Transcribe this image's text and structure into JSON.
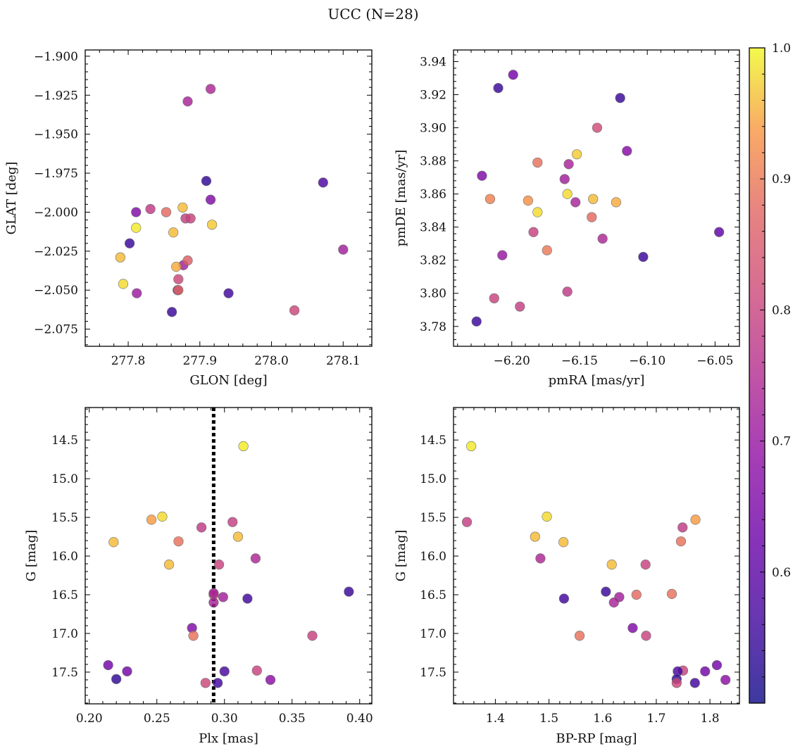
{
  "figure": {
    "title": "UCC (N=28)"
  },
  "colorbar": {
    "min": 0.5,
    "max": 1.0,
    "ticks": [
      0.6,
      0.7,
      0.8,
      0.9,
      1.0
    ],
    "tick_labels": [
      "0.6",
      "0.7",
      "0.8",
      "0.9",
      "1.0"
    ],
    "colormap": "plasma"
  },
  "chart_data": [
    {
      "type": "scatter",
      "xlabel": "GLON [deg]",
      "ylabel": "GLAT [deg]",
      "xlim": [
        277.74,
        278.14
      ],
      "ylim": [
        -2.086,
        -1.896
      ],
      "xticks": [
        277.8,
        277.9,
        278.0,
        278.1
      ],
      "xtick_labels": [
        "277.8",
        "277.9",
        "278.0",
        "278.1"
      ],
      "yticks": [
        -2.075,
        -2.05,
        -2.025,
        -2.0,
        -1.975,
        -1.95,
        -1.925,
        -1.9
      ],
      "ytick_labels": [
        "−2.075",
        "−2.050",
        "−2.025",
        "−2.000",
        "−1.975",
        "−1.950",
        "−1.925",
        "−1.900"
      ],
      "grid": false,
      "points": [
        {
          "x": 277.915,
          "y": -1.921,
          "c": 0.74
        },
        {
          "x": 277.883,
          "y": -1.929,
          "c": 0.73
        },
        {
          "x": 277.909,
          "y": -1.98,
          "c": 0.54
        },
        {
          "x": 278.072,
          "y": -1.981,
          "c": 0.58
        },
        {
          "x": 277.915,
          "y": -1.992,
          "c": 0.66
        },
        {
          "x": 277.831,
          "y": -1.998,
          "c": 0.78
        },
        {
          "x": 277.853,
          "y": -2.0,
          "c": 0.88
        },
        {
          "x": 277.876,
          "y": -1.997,
          "c": 0.96
        },
        {
          "x": 277.811,
          "y": -2.0,
          "c": 0.66
        },
        {
          "x": 277.88,
          "y": -2.004,
          "c": 0.79
        },
        {
          "x": 277.887,
          "y": -2.004,
          "c": 0.8
        },
        {
          "x": 277.917,
          "y": -2.008,
          "c": 0.97
        },
        {
          "x": 277.811,
          "y": -2.01,
          "c": 0.99
        },
        {
          "x": 277.863,
          "y": -2.013,
          "c": 0.96
        },
        {
          "x": 277.802,
          "y": -2.02,
          "c": 0.55
        },
        {
          "x": 278.1,
          "y": -2.024,
          "c": 0.72
        },
        {
          "x": 277.789,
          "y": -2.029,
          "c": 0.96
        },
        {
          "x": 277.877,
          "y": -2.034,
          "c": 0.72
        },
        {
          "x": 277.883,
          "y": -2.031,
          "c": 0.86
        },
        {
          "x": 277.867,
          "y": -2.035,
          "c": 0.95
        },
        {
          "x": 277.87,
          "y": -2.043,
          "c": 0.81
        },
        {
          "x": 277.793,
          "y": -2.046,
          "c": 0.98
        },
        {
          "x": 277.869,
          "y": -2.05,
          "c": 0.59
        },
        {
          "x": 277.87,
          "y": -2.05,
          "c": 0.88
        },
        {
          "x": 277.94,
          "y": -2.052,
          "c": 0.56
        },
        {
          "x": 277.812,
          "y": -2.052,
          "c": 0.71
        },
        {
          "x": 277.861,
          "y": -2.064,
          "c": 0.55
        },
        {
          "x": 278.032,
          "y": -2.063,
          "c": 0.81
        }
      ]
    },
    {
      "type": "scatter",
      "xlabel": "pmRA [mas/yr]",
      "ylabel": "pmDE [mas/yr]",
      "xlim": [
        -6.243,
        -6.032
      ],
      "ylim": [
        3.768,
        3.947
      ],
      "xticks": [
        -6.2,
        -6.15,
        -6.1,
        -6.05
      ],
      "xtick_labels": [
        "−6.20",
        "−6.15",
        "−6.10",
        "−6.05"
      ],
      "yticks": [
        3.78,
        3.8,
        3.82,
        3.84,
        3.86,
        3.88,
        3.9,
        3.92,
        3.94
      ],
      "ytick_labels": [
        "3.78",
        "3.80",
        "3.82",
        "3.84",
        "3.86",
        "3.88",
        "3.90",
        "3.92",
        "3.94"
      ],
      "grid": false,
      "points": [
        {
          "x": -6.199,
          "y": 3.932,
          "c": 0.64
        },
        {
          "x": -6.21,
          "y": 3.924,
          "c": 0.55
        },
        {
          "x": -6.12,
          "y": 3.918,
          "c": 0.55
        },
        {
          "x": -6.137,
          "y": 3.9,
          "c": 0.82
        },
        {
          "x": -6.115,
          "y": 3.886,
          "c": 0.67
        },
        {
          "x": -6.152,
          "y": 3.884,
          "c": 0.97
        },
        {
          "x": -6.181,
          "y": 3.879,
          "c": 0.89
        },
        {
          "x": -6.158,
          "y": 3.878,
          "c": 0.73
        },
        {
          "x": -6.222,
          "y": 3.871,
          "c": 0.66
        },
        {
          "x": -6.161,
          "y": 3.869,
          "c": 0.72
        },
        {
          "x": -6.159,
          "y": 3.86,
          "c": 0.98
        },
        {
          "x": -6.14,
          "y": 3.857,
          "c": 0.96
        },
        {
          "x": -6.216,
          "y": 3.857,
          "c": 0.91
        },
        {
          "x": -6.188,
          "y": 3.856,
          "c": 0.93
        },
        {
          "x": -6.153,
          "y": 3.855,
          "c": 0.73
        },
        {
          "x": -6.123,
          "y": 3.855,
          "c": 0.95
        },
        {
          "x": -6.181,
          "y": 3.849,
          "c": 0.98
        },
        {
          "x": -6.141,
          "y": 3.846,
          "c": 0.88
        },
        {
          "x": -6.184,
          "y": 3.837,
          "c": 0.8
        },
        {
          "x": -6.047,
          "y": 3.837,
          "c": 0.6
        },
        {
          "x": -6.133,
          "y": 3.833,
          "c": 0.74
        },
        {
          "x": -6.174,
          "y": 3.826,
          "c": 0.9
        },
        {
          "x": -6.207,
          "y": 3.823,
          "c": 0.7
        },
        {
          "x": -6.103,
          "y": 3.822,
          "c": 0.55
        },
        {
          "x": -6.159,
          "y": 3.801,
          "c": 0.78
        },
        {
          "x": -6.213,
          "y": 3.797,
          "c": 0.8
        },
        {
          "x": -6.194,
          "y": 3.792,
          "c": 0.79
        },
        {
          "x": -6.226,
          "y": 3.783,
          "c": 0.55
        }
      ]
    },
    {
      "type": "scatter",
      "xlabel": "Plx [mas]",
      "ylabel": "G [mag]",
      "xlim": [
        0.197,
        0.409
      ],
      "ylim": [
        17.91,
        14.08
      ],
      "y_inverted": true,
      "xticks": [
        0.2,
        0.25,
        0.3,
        0.35,
        0.4
      ],
      "xtick_labels": [
        "0.20",
        "0.25",
        "0.30",
        "0.35",
        "0.40"
      ],
      "yticks": [
        14.5,
        15.0,
        15.5,
        16.0,
        16.5,
        17.0,
        17.5
      ],
      "ytick_labels": [
        "14.5",
        "15.0",
        "15.5",
        "16.0",
        "16.5",
        "17.0",
        "17.5"
      ],
      "grid": false,
      "vline": {
        "x": 0.292,
        "style": "dotted",
        "color": "#000000"
      },
      "points": [
        {
          "x": 0.314,
          "y": 14.58,
          "c": 0.99
        },
        {
          "x": 0.254,
          "y": 15.49,
          "c": 0.98
        },
        {
          "x": 0.246,
          "y": 15.53,
          "c": 0.94
        },
        {
          "x": 0.306,
          "y": 15.56,
          "c": 0.79
        },
        {
          "x": 0.283,
          "y": 15.63,
          "c": 0.78
        },
        {
          "x": 0.31,
          "y": 15.75,
          "c": 0.96
        },
        {
          "x": 0.218,
          "y": 15.82,
          "c": 0.96
        },
        {
          "x": 0.266,
          "y": 15.81,
          "c": 0.89
        },
        {
          "x": 0.323,
          "y": 16.03,
          "c": 0.74
        },
        {
          "x": 0.259,
          "y": 16.11,
          "c": 0.96
        },
        {
          "x": 0.296,
          "y": 16.11,
          "c": 0.8
        },
        {
          "x": 0.392,
          "y": 16.46,
          "c": 0.55
        },
        {
          "x": 0.292,
          "y": 16.5,
          "c": 0.88
        },
        {
          "x": 0.299,
          "y": 16.53,
          "c": 0.72
        },
        {
          "x": 0.317,
          "y": 16.55,
          "c": 0.56
        },
        {
          "x": 0.292,
          "y": 16.6,
          "c": 0.73
        },
        {
          "x": 0.276,
          "y": 16.93,
          "c": 0.66
        },
        {
          "x": 0.277,
          "y": 17.03,
          "c": 0.89
        },
        {
          "x": 0.365,
          "y": 17.03,
          "c": 0.8
        },
        {
          "x": 0.214,
          "y": 17.41,
          "c": 0.64
        },
        {
          "x": 0.324,
          "y": 17.48,
          "c": 0.8
        },
        {
          "x": 0.228,
          "y": 17.49,
          "c": 0.64
        },
        {
          "x": 0.3,
          "y": 17.49,
          "c": 0.57
        },
        {
          "x": 0.22,
          "y": 17.59,
          "c": 0.54
        },
        {
          "x": 0.334,
          "y": 17.6,
          "c": 0.68
        },
        {
          "x": 0.286,
          "y": 17.64,
          "c": 0.81
        },
        {
          "x": 0.295,
          "y": 17.64,
          "c": 0.56
        },
        {
          "x": 0.292,
          "y": 16.48,
          "c": 0.72
        }
      ]
    },
    {
      "type": "scatter",
      "xlabel": "BP-RP [mag]",
      "ylabel": "G [mag]",
      "xlim": [
        1.322,
        1.855
      ],
      "ylim": [
        17.91,
        14.08
      ],
      "y_inverted": true,
      "xticks": [
        1.4,
        1.5,
        1.6,
        1.7,
        1.8
      ],
      "xtick_labels": [
        "1.4",
        "1.5",
        "1.6",
        "1.7",
        "1.8"
      ],
      "yticks": [
        14.5,
        15.0,
        15.5,
        16.0,
        16.5,
        17.0,
        17.5
      ],
      "ytick_labels": [
        "14.5",
        "15.0",
        "15.5",
        "16.0",
        "16.5",
        "17.0",
        "17.5"
      ],
      "grid": false,
      "points": [
        {
          "x": 1.355,
          "y": 14.58,
          "c": 0.99
        },
        {
          "x": 1.347,
          "y": 15.56,
          "c": 0.79
        },
        {
          "x": 1.496,
          "y": 15.49,
          "c": 0.98
        },
        {
          "x": 1.773,
          "y": 15.53,
          "c": 0.94
        },
        {
          "x": 1.749,
          "y": 15.63,
          "c": 0.78
        },
        {
          "x": 1.474,
          "y": 15.75,
          "c": 0.96
        },
        {
          "x": 1.527,
          "y": 15.82,
          "c": 0.96
        },
        {
          "x": 1.746,
          "y": 15.81,
          "c": 0.89
        },
        {
          "x": 1.484,
          "y": 16.03,
          "c": 0.74
        },
        {
          "x": 1.617,
          "y": 16.11,
          "c": 0.96
        },
        {
          "x": 1.68,
          "y": 16.11,
          "c": 0.8
        },
        {
          "x": 1.606,
          "y": 16.46,
          "c": 0.55
        },
        {
          "x": 1.528,
          "y": 16.55,
          "c": 0.56
        },
        {
          "x": 1.663,
          "y": 16.5,
          "c": 0.88
        },
        {
          "x": 1.729,
          "y": 16.49,
          "c": 0.89
        },
        {
          "x": 1.631,
          "y": 16.53,
          "c": 0.72
        },
        {
          "x": 1.621,
          "y": 16.6,
          "c": 0.73
        },
        {
          "x": 1.656,
          "y": 16.93,
          "c": 0.66
        },
        {
          "x": 1.557,
          "y": 17.03,
          "c": 0.89
        },
        {
          "x": 1.681,
          "y": 17.03,
          "c": 0.8
        },
        {
          "x": 1.813,
          "y": 17.41,
          "c": 0.64
        },
        {
          "x": 1.791,
          "y": 17.49,
          "c": 0.64
        },
        {
          "x": 1.75,
          "y": 17.48,
          "c": 0.8
        },
        {
          "x": 1.74,
          "y": 17.49,
          "c": 0.57
        },
        {
          "x": 1.738,
          "y": 17.59,
          "c": 0.54
        },
        {
          "x": 1.829,
          "y": 17.6,
          "c": 0.68
        },
        {
          "x": 1.738,
          "y": 17.64,
          "c": 0.81
        },
        {
          "x": 1.772,
          "y": 17.64,
          "c": 0.56
        }
      ]
    }
  ]
}
